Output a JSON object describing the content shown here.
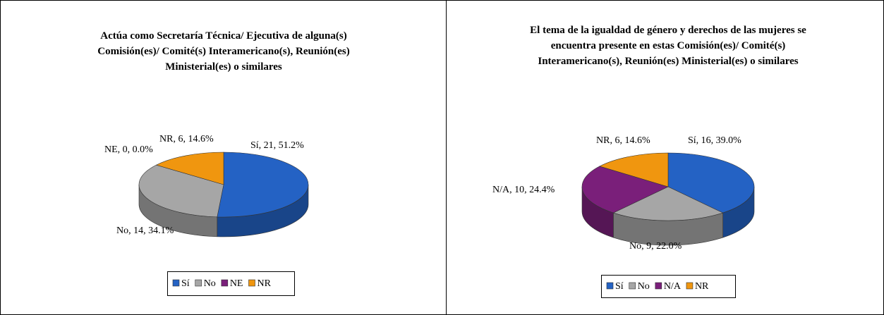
{
  "chart_data": [
    {
      "type": "pie3d",
      "title": "Actúa como Secretaría Técnica/ Ejecutiva de alguna(s)\nComisión(es)/ Comité(s) Interamericano(s), Reunión(es)\nMinisterial(es) o similares",
      "categories": [
        "Sí",
        "No",
        "NE",
        "NR"
      ],
      "values": [
        21,
        14,
        0,
        6
      ],
      "value_labels": [
        "Sí, 21, 51.2%",
        "No, 14, 34.1%",
        "NE, 0, 0.0%",
        "NR, 6, 14.6%"
      ],
      "colors": [
        "#2462c4",
        "#a6a6a6",
        "#7a1f7a",
        "#f0960f"
      ],
      "legend": "bottom"
    },
    {
      "type": "pie3d",
      "title": "El tema de la igualdad de género y derechos de las mujeres se\nencuentra presente en estas Comisión(es)/ Comité(s)\nInteramericano(s), Reunión(es) Ministerial(es) o similares",
      "categories": [
        "Sí",
        "No",
        "N/A",
        "NR"
      ],
      "values": [
        16,
        9,
        10,
        6
      ],
      "value_labels": [
        "Sí, 16, 39.0%",
        "No, 9, 22.0%",
        "N/A, 10, 24.4%",
        "NR, 6, 14.6%"
      ],
      "colors": [
        "#2462c4",
        "#a6a6a6",
        "#7a1f7a",
        "#f0960f"
      ],
      "legend": "bottom"
    }
  ]
}
